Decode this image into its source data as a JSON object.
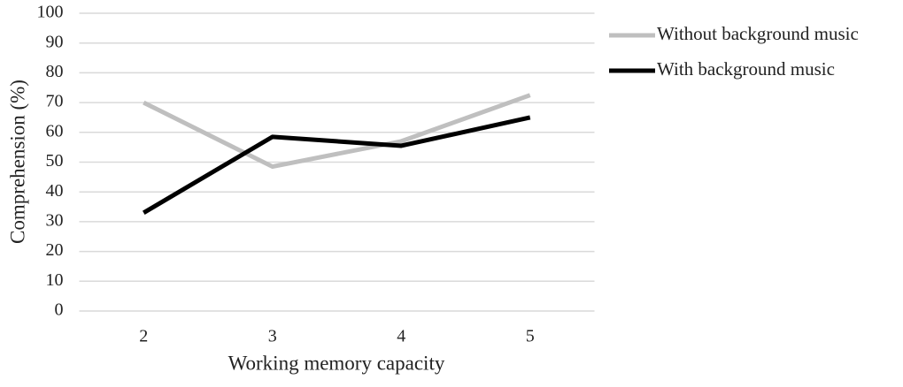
{
  "chart_data": {
    "type": "line",
    "x_label": "Working memory capacity",
    "y_label": "Comprehension (%)",
    "categories": [
      "2",
      "3",
      "4",
      "5"
    ],
    "series": [
      {
        "name": "Without background music",
        "color": "#bfbfbf",
        "values": [
          70,
          48.5,
          57,
          72.5
        ]
      },
      {
        "name": "With background music",
        "color": "#000000",
        "values": [
          33,
          58.5,
          55.5,
          65
        ]
      }
    ],
    "ylim": [
      0,
      100
    ],
    "yticks": [
      0,
      10,
      20,
      30,
      40,
      50,
      60,
      70,
      80,
      90,
      100
    ],
    "grid": true,
    "legend": "right"
  }
}
